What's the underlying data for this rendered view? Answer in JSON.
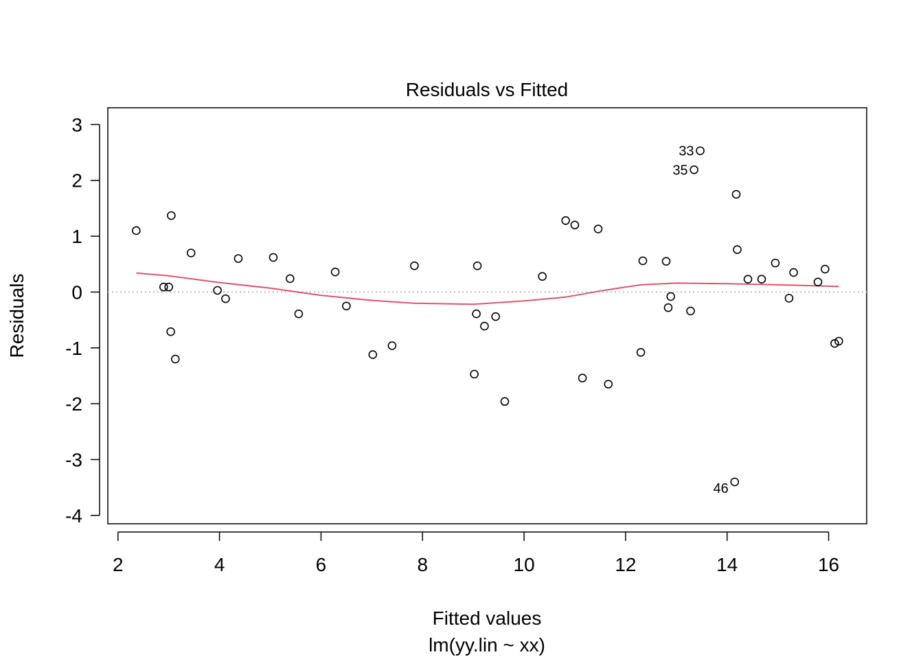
{
  "chart_data": {
    "type": "scatter",
    "title": "Residuals vs Fitted",
    "xlabel": "Fitted values",
    "subtitle": "lm(yy.lin ~ xx)",
    "ylabel": "Residuals",
    "xlim": [
      1.8,
      16.75
    ],
    "ylim": [
      -4.15,
      3.3
    ],
    "xticks": [
      2,
      4,
      6,
      8,
      10,
      12,
      14,
      16
    ],
    "yticks": [
      -4,
      -3,
      -2,
      -1,
      0,
      1,
      2,
      3
    ],
    "grid": false,
    "colors": {
      "points": "#000000",
      "smooth": "#DF536B",
      "reference": "#BEBEBE"
    },
    "points": [
      [
        2.36,
        1.1
      ],
      [
        2.9,
        0.09
      ],
      [
        3.0,
        0.09
      ],
      [
        3.04,
        -0.71
      ],
      [
        3.05,
        1.37
      ],
      [
        3.13,
        -1.2
      ],
      [
        3.44,
        0.7
      ],
      [
        3.96,
        0.03
      ],
      [
        4.12,
        -0.12
      ],
      [
        4.37,
        0.6
      ],
      [
        5.06,
        0.62
      ],
      [
        5.39,
        0.24
      ],
      [
        5.56,
        -0.39
      ],
      [
        6.28,
        0.36
      ],
      [
        6.5,
        -0.25
      ],
      [
        7.02,
        -1.12
      ],
      [
        7.4,
        -0.96
      ],
      [
        7.84,
        0.47
      ],
      [
        9.02,
        -1.47
      ],
      [
        9.06,
        -0.39
      ],
      [
        9.08,
        0.47
      ],
      [
        9.22,
        -0.61
      ],
      [
        9.44,
        -0.44
      ],
      [
        9.62,
        -1.96
      ],
      [
        10.36,
        0.28
      ],
      [
        10.82,
        1.28
      ],
      [
        11.0,
        1.2
      ],
      [
        11.15,
        -1.54
      ],
      [
        11.46,
        1.13
      ],
      [
        11.66,
        -1.65
      ],
      [
        12.3,
        -1.08
      ],
      [
        12.34,
        0.56
      ],
      [
        12.8,
        0.55
      ],
      [
        12.84,
        -0.28
      ],
      [
        12.89,
        -0.08
      ],
      [
        13.28,
        -0.34
      ],
      [
        13.35,
        2.19
      ],
      [
        13.47,
        2.53
      ],
      [
        14.15,
        -3.4
      ],
      [
        14.18,
        1.75
      ],
      [
        14.2,
        0.76
      ],
      [
        14.41,
        0.23
      ],
      [
        14.68,
        0.23
      ],
      [
        14.95,
        0.52
      ],
      [
        15.22,
        -0.11
      ],
      [
        15.31,
        0.35
      ],
      [
        15.79,
        0.18
      ],
      [
        15.93,
        0.41
      ],
      [
        16.12,
        -0.92
      ],
      [
        16.2,
        -0.88
      ]
    ],
    "smooth": [
      [
        2.36,
        0.34
      ],
      [
        3.0,
        0.29
      ],
      [
        4.0,
        0.17
      ],
      [
        5.0,
        0.07
      ],
      [
        6.0,
        -0.06
      ],
      [
        7.0,
        -0.15
      ],
      [
        7.84,
        -0.2
      ],
      [
        9.0,
        -0.22
      ],
      [
        10.0,
        -0.16
      ],
      [
        10.82,
        -0.09
      ],
      [
        11.5,
        0.02
      ],
      [
        12.3,
        0.13
      ],
      [
        13.0,
        0.16
      ],
      [
        14.0,
        0.15
      ],
      [
        15.0,
        0.13
      ],
      [
        16.2,
        0.1
      ]
    ],
    "labeled_points": [
      {
        "label": "33",
        "x": 13.47,
        "y": 2.53
      },
      {
        "label": "35",
        "x": 13.35,
        "y": 2.19
      },
      {
        "label": "46",
        "x": 14.15,
        "y": -3.4
      }
    ]
  }
}
